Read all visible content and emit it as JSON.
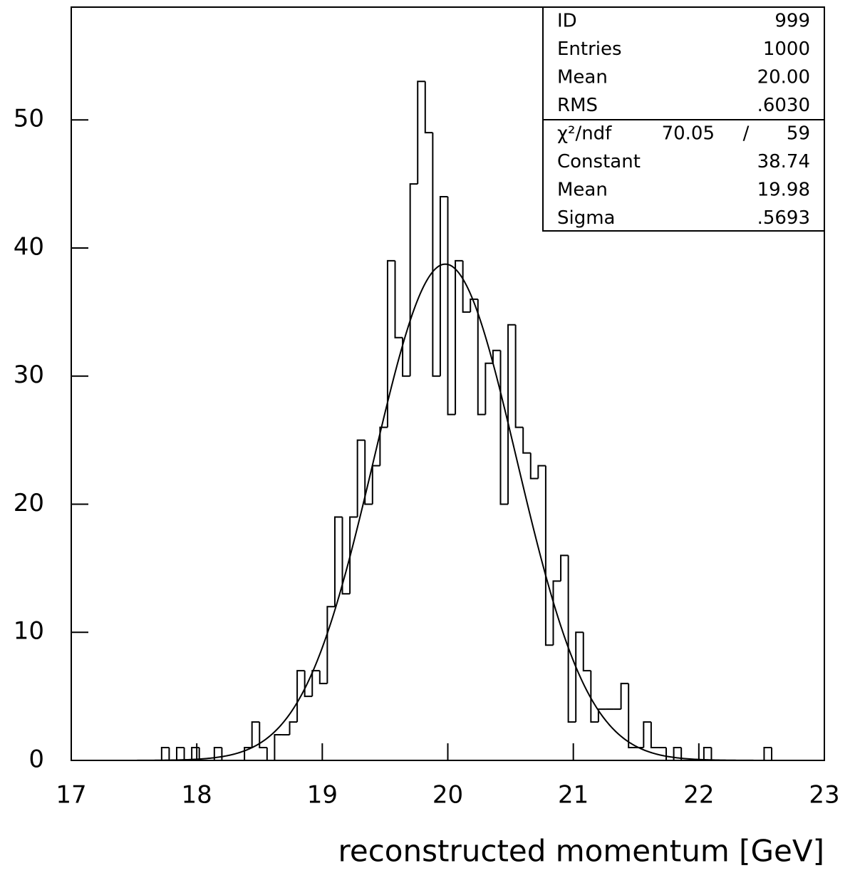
{
  "chart_data": {
    "type": "histogram",
    "x_label": "reconstructed momentum [GeV]",
    "bins": [
      17,
      17.06,
      17.12,
      17.18,
      17.24,
      17.3,
      17.36,
      17.42,
      17.48,
      17.54,
      17.6,
      17.66,
      17.72,
      17.78,
      17.84,
      17.9,
      17.96,
      18.02,
      18.08,
      18.14,
      18.2,
      18.26,
      18.32,
      18.38,
      18.44,
      18.5,
      18.56,
      18.62,
      18.68,
      18.74,
      18.8,
      18.86,
      18.92,
      18.98,
      19.04,
      19.1,
      19.16,
      19.22,
      19.28,
      19.34,
      19.4,
      19.46,
      19.52,
      19.58,
      19.64,
      19.7,
      19.76,
      19.82,
      19.88,
      19.94,
      20,
      20.06,
      20.12,
      20.18,
      20.24,
      20.3,
      20.36,
      20.42,
      20.48,
      20.54,
      20.6,
      20.66,
      20.72,
      20.78,
      20.84,
      20.9,
      20.96,
      21.02,
      21.08,
      21.14,
      21.2,
      21.26,
      21.32,
      21.38,
      21.44,
      21.5,
      21.56,
      21.62,
      21.68,
      21.74,
      21.8,
      21.86,
      21.92,
      21.98,
      22.04,
      22.1,
      22.16,
      22.22,
      22.28,
      22.34,
      22.4,
      22.46,
      22.52,
      22.58,
      22.64,
      22.7,
      22.76,
      22.82,
      22.88,
      22.94,
      23
    ],
    "values": [
      0,
      0,
      0,
      0,
      0,
      0,
      0,
      0,
      0,
      0,
      0,
      0,
      1,
      0,
      1,
      0,
      1,
      0,
      0,
      1,
      0,
      0,
      0,
      1,
      3,
      1,
      0,
      2,
      2,
      3,
      7,
      5,
      7,
      6,
      12,
      19,
      13,
      19,
      25,
      20,
      23,
      26,
      39,
      33,
      30,
      45,
      53,
      49,
      30,
      44,
      27,
      39,
      35,
      36,
      27,
      31,
      32,
      20,
      34,
      26,
      24,
      22,
      23,
      9,
      14,
      16,
      3,
      10,
      7,
      3,
      4,
      4,
      4,
      6,
      1,
      1,
      3,
      1,
      1,
      0,
      1,
      0,
      0,
      0,
      1,
      0,
      0,
      0,
      0,
      0,
      0,
      0,
      1,
      0,
      0,
      0,
      0,
      0,
      0,
      0
    ],
    "color": "#000000",
    "xlim": [
      17,
      23
    ],
    "xticks": [
      17,
      18,
      19,
      20,
      21,
      22,
      23
    ],
    "ylim": [
      0,
      58.8
    ],
    "yticks": [
      0,
      10,
      20,
      30,
      40,
      50
    ],
    "stats_box": {
      "rows": [
        {
          "name": "ID",
          "value": 999
        },
        {
          "name": "Entries",
          "value": 1000
        },
        {
          "name": "Mean",
          "value": {
            "value": 20.0,
            "label": "20.00"
          }
        },
        {
          "name": "RMS",
          "value": {
            "value": 0.603,
            "label": ".6030"
          }
        }
      ],
      "fit": {
        "function": "gaussian",
        "chi2_name": "χ²/ndf",
        "chi2": 70.05,
        "separator": "/",
        "ndf": 59,
        "params": [
          {
            "name": "Constant",
            "value": 38.74
          },
          {
            "name": "Mean",
            "value": 19.98
          },
          {
            "name": "Sigma",
            "value": {
              "value": 0.5693,
              "label": ".5693"
            }
          }
        ]
      }
    }
  }
}
